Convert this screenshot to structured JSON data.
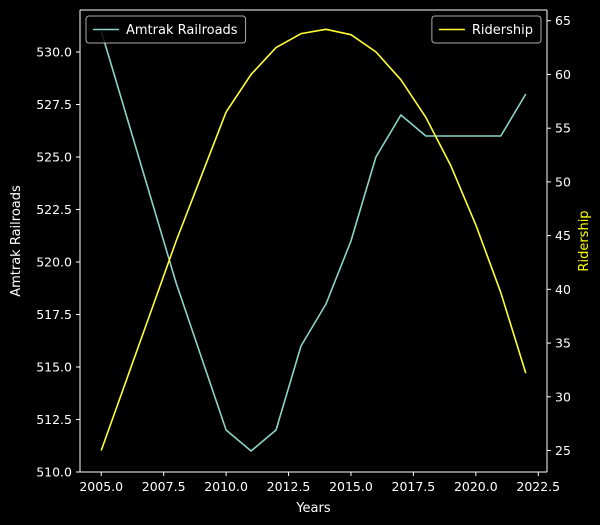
{
  "chart_data": {
    "type": "line",
    "x": [
      2005,
      2006,
      2007,
      2008,
      2009,
      2010,
      2011,
      2012,
      2013,
      2014,
      2015,
      2016,
      2017,
      2018,
      2019,
      2020,
      2021,
      2022
    ],
    "xlabel": "Years",
    "xlim": [
      2004.15,
      2022.85
    ],
    "xticks": [
      2005.0,
      2007.5,
      2010.0,
      2012.5,
      2015.0,
      2017.5,
      2020.0,
      2022.5
    ],
    "left_axis": {
      "label": "Amtrak Railroads",
      "label_color": "#ffffff",
      "lim": [
        510.0,
        532.0
      ],
      "ticks": [
        510.0,
        512.5,
        515.0,
        517.5,
        520.0,
        522.5,
        525.0,
        527.5,
        530.0
      ],
      "tick_format": 1
    },
    "right_axis": {
      "label": "Ridership",
      "label_color": "#ffff00",
      "lim": [
        23.0,
        66.0
      ],
      "ticks": [
        25,
        30,
        35,
        40,
        45,
        50,
        55,
        60,
        65
      ],
      "tick_format": 0
    },
    "series": [
      {
        "name": "Amtrak Railroads",
        "axis": "left",
        "color": "#8dd3c7",
        "values": [
          531,
          527,
          523,
          519,
          515.5,
          512,
          511,
          512,
          516,
          518,
          521,
          525,
          527,
          526,
          526,
          526,
          526,
          528
        ]
      },
      {
        "name": "Ridership",
        "axis": "right",
        "color": "#ffff33",
        "values": [
          25,
          31.5,
          38,
          44.5,
          50.5,
          56.5,
          60,
          62.5,
          63.8,
          64.2,
          63.7,
          62.1,
          59.5,
          56,
          51.5,
          46,
          39.7,
          32.2
        ]
      }
    ],
    "legends": [
      {
        "position": "top-left",
        "series": "Amtrak Railroads"
      },
      {
        "position": "top-right",
        "series": "Ridership"
      }
    ],
    "grid": false,
    "background": "#000000"
  }
}
